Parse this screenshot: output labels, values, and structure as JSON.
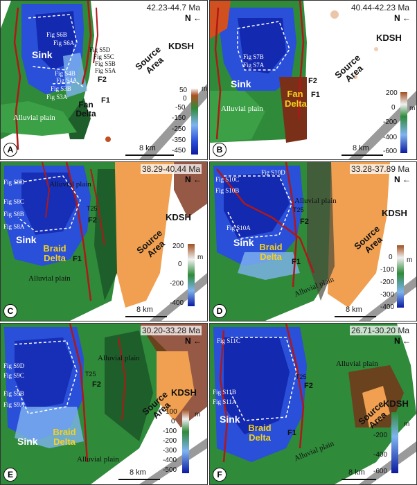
{
  "panels": [
    {
      "letter": "A",
      "age": "42.23-44.7 Ma",
      "north": "N",
      "region": "KDSH",
      "source": "Source Area",
      "sink": "Sink",
      "delta": "Fan Delta",
      "faults": [
        "F1",
        "F2"
      ],
      "plain": "Alluvial plain",
      "fig_refs": [
        "Fig S6B",
        "Fig S6A",
        "Fig S5D",
        "Fig S5C",
        "Fig S5B",
        "Fig S5A",
        "Fig S4B",
        "Fig S4A",
        "Fig S3B",
        "Fig S3A"
      ],
      "scale": "8 km",
      "colorbar": {
        "unit": "m",
        "ticks": [
          "50",
          "0",
          "-50",
          "-150",
          "-250",
          "-350",
          "-450"
        ]
      }
    },
    {
      "letter": "B",
      "age": "40.44-42.23 Ma",
      "north": "N",
      "region": "KDSH",
      "source": "Source Area",
      "sink": "Sink",
      "delta": "Fan Delta",
      "faults": [
        "F1",
        "F2"
      ],
      "plain": "Alluvial plain",
      "fig_refs": [
        "Fig S7B",
        "Fig S7A"
      ],
      "scale": "8 km",
      "colorbar": {
        "unit": "m",
        "ticks": [
          "200",
          "0",
          "-200",
          "-400",
          "-600"
        ]
      }
    },
    {
      "letter": "C",
      "age": "38.29-40.44 Ma",
      "north": "N",
      "region": "KDSH",
      "source": "Source Area",
      "sink": "Sink",
      "delta": "Braid Delta",
      "faults": [
        "F1",
        "F2"
      ],
      "plain": "Alluvial plain",
      "plain2": "Alluvial plain",
      "fig_refs": [
        "Fig S8D",
        "Fig S8C",
        "Fig S8B",
        "Fig S8A"
      ],
      "t25": "T25",
      "scale": "8 km",
      "colorbar": {
        "unit": "m",
        "ticks": [
          "200",
          "0",
          "-200",
          "-400"
        ]
      }
    },
    {
      "letter": "D",
      "age": "33.28-37.89 Ma",
      "north": "N",
      "region": "KDSH",
      "source": "Source Area",
      "sink": "Sink",
      "delta": "Braid Delta",
      "faults": [
        "F1",
        "F2"
      ],
      "plain": "Alluvial plain",
      "plain2": "Alluvial plain",
      "fig_refs": [
        "Fig S10D",
        "Fig S10C",
        "Fig S10B",
        "Fig S10A"
      ],
      "t25": "T25",
      "scale": "8 km",
      "colorbar": {
        "unit": "m",
        "ticks": [
          "0",
          "-100",
          "-200",
          "-300",
          "-400"
        ]
      }
    },
    {
      "letter": "E",
      "age": "30.20-33.28 Ma",
      "north": "N",
      "region": "KDSH",
      "source": "Source Area",
      "sink": "Sink",
      "delta": "Braid Delta",
      "faults": [
        "F2"
      ],
      "plain": "Alluvial plain",
      "plain2": "Alluvial plain",
      "fig_refs": [
        "Fig S9D",
        "Fig S9C",
        "Fig S9B",
        "Fig S9A"
      ],
      "t25": "T25",
      "scale": "8 km",
      "colorbar": {
        "unit": "m",
        "ticks": [
          "100",
          "0",
          "-100",
          "-200",
          "-300",
          "-400",
          "-500"
        ]
      }
    },
    {
      "letter": "F",
      "age": "26.71-30.20 Ma",
      "north": "N",
      "region": "KDSH",
      "source": "Source Area",
      "sink": "Sink",
      "delta": "Braid Delta",
      "faults": [
        "F1",
        "F2"
      ],
      "plain": "Alluvial plain",
      "plain2": "Alluvial plain",
      "fig_refs": [
        "Fig S11C",
        "Fig S11B",
        "Fig S11A"
      ],
      "t25": "T25",
      "scale": "8 km",
      "colorbar": {
        "unit": "m",
        "ticks": [
          "0",
          "-200",
          "-400",
          "-600"
        ]
      }
    }
  ],
  "colors": {
    "sink_blue": "#2a4fd8",
    "deep_blue": "#0a1aa0",
    "light_blue": "#7fb4f0",
    "plain_green": "#2f8a3a",
    "dark_green": "#1e5e2a",
    "source_orange": "#f0a050",
    "fault_red": "#b01818",
    "basement_gray": "#9a9a9a",
    "delta_yellow": "#f5d21c"
  }
}
